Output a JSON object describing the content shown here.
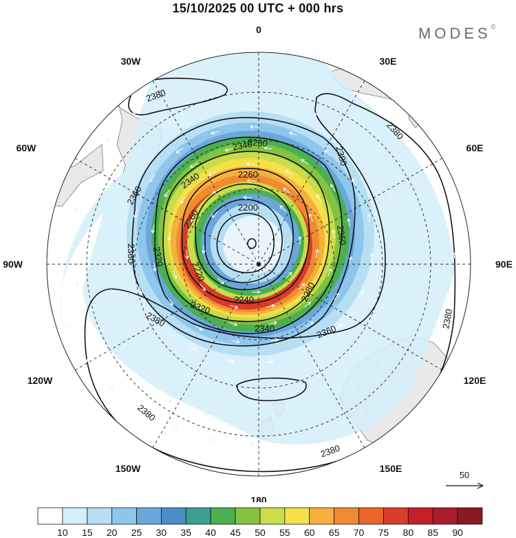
{
  "title": "15/10/2025  00 UTC  + 000 hrs",
  "brand": {
    "name": "MODES",
    "mark": "©"
  },
  "map": {
    "projection": "south polar stereographic",
    "longitude_labels": [
      {
        "name": "lon-0",
        "text": "0",
        "deg": 0
      },
      {
        "name": "lon-30e",
        "text": "30E",
        "deg": 30
      },
      {
        "name": "lon-60e",
        "text": "60E",
        "deg": 60
      },
      {
        "name": "lon-90e",
        "text": "90E",
        "deg": 90
      },
      {
        "name": "lon-120e",
        "text": "120E",
        "deg": 120
      },
      {
        "name": "lon-150e",
        "text": "150E",
        "deg": 150
      },
      {
        "name": "lon-180",
        "text": "180",
        "deg": 180
      },
      {
        "name": "lon-150w",
        "text": "150W",
        "deg": 210
      },
      {
        "name": "lon-120w",
        "text": "120W",
        "deg": 240
      },
      {
        "name": "lon-90w",
        "text": "90W",
        "deg": 270
      },
      {
        "name": "lon-60w",
        "text": "60W",
        "deg": 300
      },
      {
        "name": "lon-30w",
        "text": "30W",
        "deg": 330
      }
    ],
    "contour_values": [
      "2200",
      "2240",
      "2260",
      "2280",
      "2320",
      "2340",
      "2360",
      "2380"
    ],
    "contour_labels": [
      "2380",
      "2380",
      "2380",
      "2380",
      "2380",
      "2380",
      "2360",
      "2360",
      "2360",
      "2360",
      "2340",
      "2340",
      "2340",
      "2320",
      "2320",
      "2280",
      "2280",
      "2260",
      "2260",
      "2240",
      "2220",
      "2200",
      "2380"
    ],
    "vector_reference": {
      "label": "50"
    }
  },
  "colorbar": {
    "levels": [
      "10",
      "15",
      "20",
      "25",
      "30",
      "35",
      "40",
      "45",
      "50",
      "55",
      "60",
      "65",
      "70",
      "75",
      "80",
      "85",
      "90"
    ],
    "colors": [
      "#ffffff",
      "#d4eefa",
      "#b7dff4",
      "#8fc6ec",
      "#6aa8dc",
      "#4a8ec9",
      "#3d9e8f",
      "#4caf50",
      "#82c341",
      "#c9dc4a",
      "#f5e04a",
      "#f6b13c",
      "#f08b32",
      "#e9662c",
      "#d93c2a",
      "#c4202a",
      "#a91d2c",
      "#8a1a22"
    ]
  },
  "colors": {
    "land": "#e9e9e9",
    "coast": "#7a7a7a",
    "grid": "#222222",
    "contour": "#111111",
    "arrow": "#ffffff"
  }
}
